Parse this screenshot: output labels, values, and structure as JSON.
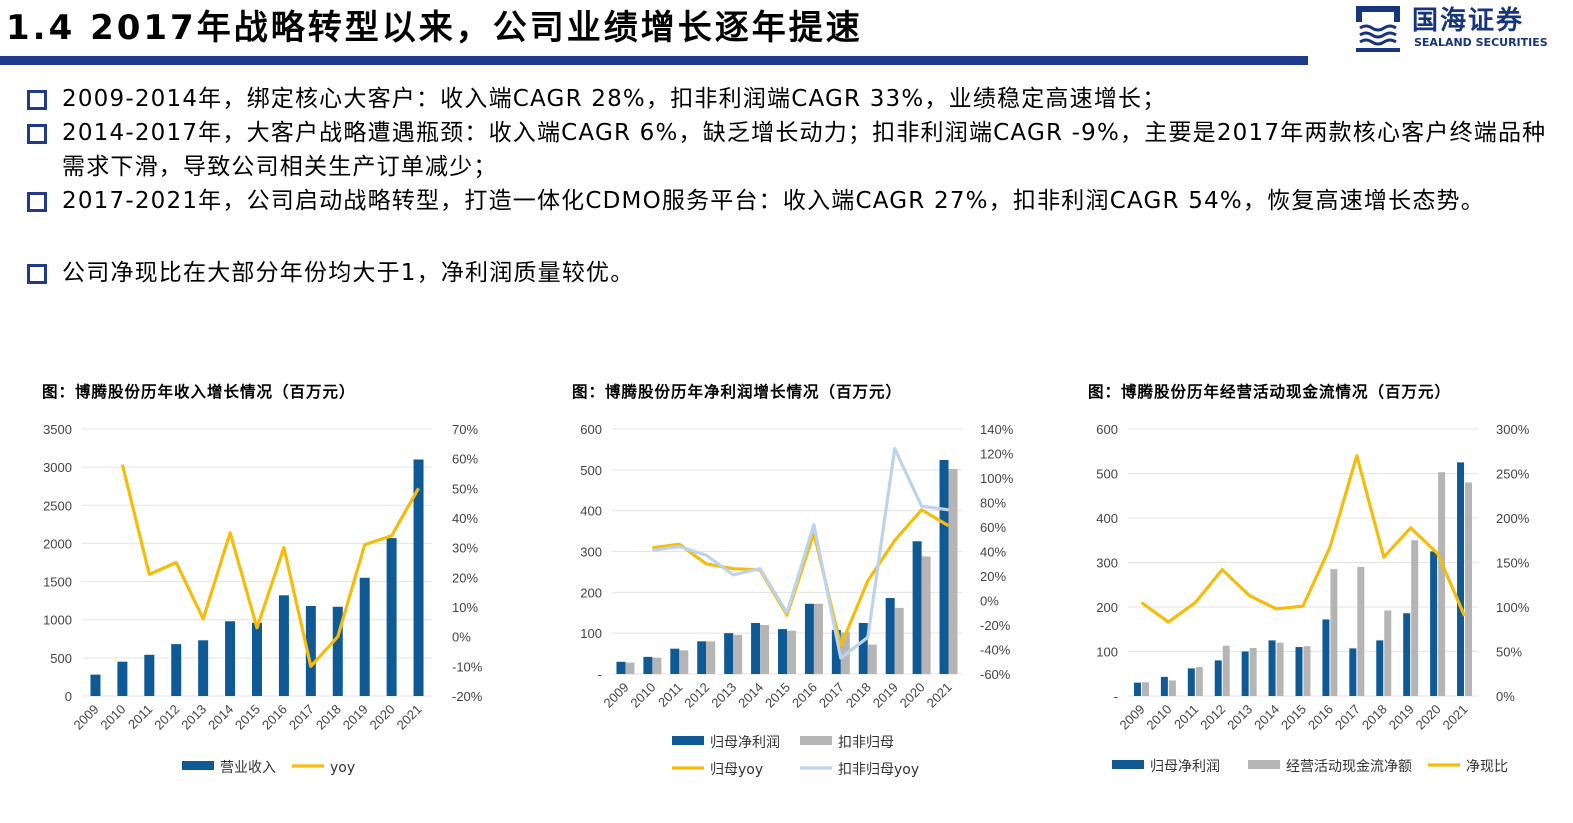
{
  "header": {
    "title": "1.4 2017年战略转型以来，公司业绩增长逐年提速",
    "logo_cn": "国海证券",
    "logo_en": "SEALAND SECURITIES"
  },
  "bullets": [
    "2009-2014年，绑定核心大客户：收入端CAGR 28%，扣非利润端CAGR 33%，业绩稳定高速增长；",
    "2014-2017年，大客户战略遭遇瓶颈：收入端CAGR 6%，缺乏增长动力；扣非利润端CAGR -9%，主要是2017年两款核心客户终端品种需求下滑，导致公司相关生产订单减少；",
    "2017-2021年，公司启动战略转型，打造一体化CDMO服务平台：收入端CAGR 27%，扣非利润CAGR 54%，恢复高速增长态势。",
    "公司净现比在大部分年份均大于1，净利润质量较优。"
  ],
  "colors": {
    "navy": "#0f5a94",
    "gray": "#b5b5b5",
    "gold": "#f5bd0b",
    "lightblue": "#bcd3ea"
  },
  "chart_data": [
    {
      "type": "bar",
      "title": "图：博腾股份历年收入增长情况（百万元）",
      "categories": [
        "2009",
        "2010",
        "2011",
        "2012",
        "2013",
        "2014",
        "2015",
        "2016",
        "2017",
        "2018",
        "2019",
        "2020",
        "2021"
      ],
      "ylim": [
        0,
        3500
      ],
      "y_ticks": [
        "0",
        "500",
        "1000",
        "1500",
        "2000",
        "2500",
        "3000",
        "3500"
      ],
      "y2lim": [
        -20,
        70
      ],
      "y2_ticks": [
        "-20%",
        "-10%",
        "0%",
        "10%",
        "20%",
        "30%",
        "40%",
        "50%",
        "60%",
        "70%"
      ],
      "series": [
        {
          "name": "营业收入",
          "kind": "bar",
          "axis": "left",
          "color": "#0f5a94",
          "values": [
            280,
            450,
            540,
            680,
            730,
            980,
            960,
            1320,
            1180,
            1170,
            1550,
            2070,
            3100
          ]
        },
        {
          "name": "yoy",
          "kind": "line",
          "axis": "right",
          "color": "#f5bd0b",
          "values": [
            null,
            58,
            21,
            25,
            6,
            35,
            3,
            30,
            -10,
            0,
            31,
            34,
            50
          ]
        }
      ]
    },
    {
      "type": "bar",
      "title": "图：博腾股份历年净利润增长情况（百万元）",
      "categories": [
        "2009",
        "2010",
        "2011",
        "2012",
        "2013",
        "2014",
        "2015",
        "2016",
        "2017",
        "2018",
        "2019",
        "2020",
        "2021"
      ],
      "ylim": [
        0,
        600
      ],
      "y_ticks": [
        "-",
        "100",
        "200",
        "300",
        "400",
        "500",
        "600"
      ],
      "y2lim": [
        -60,
        140
      ],
      "y2_ticks": [
        "-60%",
        "-40%",
        "-20%",
        "0%",
        "20%",
        "40%",
        "60%",
        "80%",
        "100%",
        "120%",
        "140%"
      ],
      "series": [
        {
          "name": "归母净利润",
          "kind": "bar",
          "axis": "left",
          "color": "#0f5a94",
          "values": [
            30,
            42,
            62,
            80,
            100,
            125,
            110,
            172,
            108,
            125,
            186,
            325,
            524
          ]
        },
        {
          "name": "扣非归母",
          "kind": "bar",
          "axis": "left",
          "color": "#b5b5b5",
          "values": [
            28,
            40,
            58,
            80,
            96,
            120,
            106,
            172,
            102,
            72,
            162,
            288,
            502
          ]
        },
        {
          "name": "归母yoy",
          "kind": "line",
          "axis": "right",
          "color": "#f5bd0b",
          "values": [
            null,
            43,
            46,
            30,
            26,
            25,
            -12,
            55,
            -37,
            16,
            49,
            74,
            61
          ]
        },
        {
          "name": "扣非归母yoy",
          "kind": "line",
          "axis": "right",
          "color": "#bcd3ea",
          "values": [
            null,
            41,
            44,
            37,
            21,
            26,
            -10,
            62,
            -47,
            -30,
            124,
            77,
            74
          ]
        }
      ]
    },
    {
      "type": "bar",
      "title": "图：博腾股份历年经营活动现金流情况（百万元）",
      "categories": [
        "2009",
        "2010",
        "2011",
        "2012",
        "2013",
        "2014",
        "2015",
        "2016",
        "2017",
        "2018",
        "2019",
        "2020",
        "2021"
      ],
      "ylim": [
        0,
        600
      ],
      "y_ticks": [
        "-",
        "100",
        "200",
        "300",
        "400",
        "500",
        "600"
      ],
      "y2lim": [
        0,
        300
      ],
      "y2_ticks": [
        "0%",
        "50%",
        "100%",
        "150%",
        "200%",
        "250%",
        "300%"
      ],
      "series": [
        {
          "name": "归母净利润",
          "kind": "bar",
          "axis": "left",
          "color": "#0f5a94",
          "values": [
            30,
            43,
            62,
            80,
            100,
            125,
            110,
            172,
            107,
            125,
            186,
            325,
            525
          ]
        },
        {
          "name": "经营活动现金流净额",
          "kind": "bar",
          "axis": "left",
          "color": "#b5b5b5",
          "values": [
            31,
            35,
            65,
            113,
            108,
            120,
            112,
            285,
            290,
            192,
            350,
            503,
            480
          ]
        },
        {
          "name": "净现比",
          "kind": "line",
          "axis": "right",
          "color": "#f5bd0b",
          "values": [
            105,
            83,
            105,
            142,
            113,
            98,
            101,
            167,
            270,
            156,
            189,
            160,
            90
          ]
        }
      ]
    }
  ]
}
